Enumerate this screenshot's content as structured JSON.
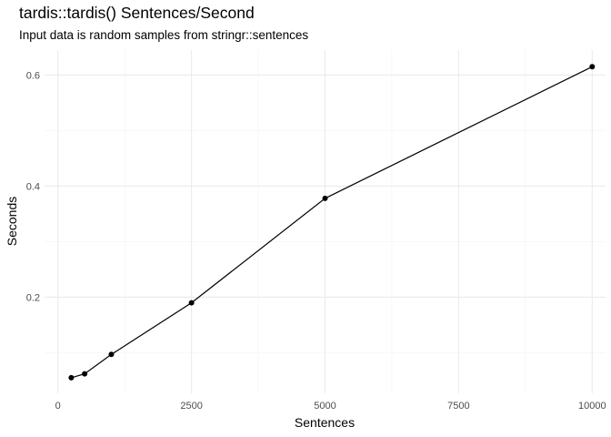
{
  "chart_data": {
    "type": "line",
    "title": "tardis::tardis() Sentences/Second",
    "subtitle": "Input data is random samples from stringr::sentences",
    "xlabel": "Sentences",
    "ylabel": "Seconds",
    "x": [
      250,
      500,
      1000,
      2500,
      5000,
      10000
    ],
    "y": [
      0.055,
      0.062,
      0.097,
      0.19,
      0.378,
      0.615
    ],
    "xlim": [
      -250,
      10250
    ],
    "ylim": [
      0.027,
      0.645
    ],
    "x_ticks": [
      0,
      2500,
      5000,
      7500,
      10000
    ],
    "x_tick_labels": [
      "0",
      "2500",
      "5000",
      "7500",
      "10000"
    ],
    "y_ticks": [
      0.2,
      0.4,
      0.6
    ],
    "y_tick_labels": [
      "0.2",
      "0.4",
      "0.6"
    ],
    "grid": true,
    "legend": "none"
  }
}
